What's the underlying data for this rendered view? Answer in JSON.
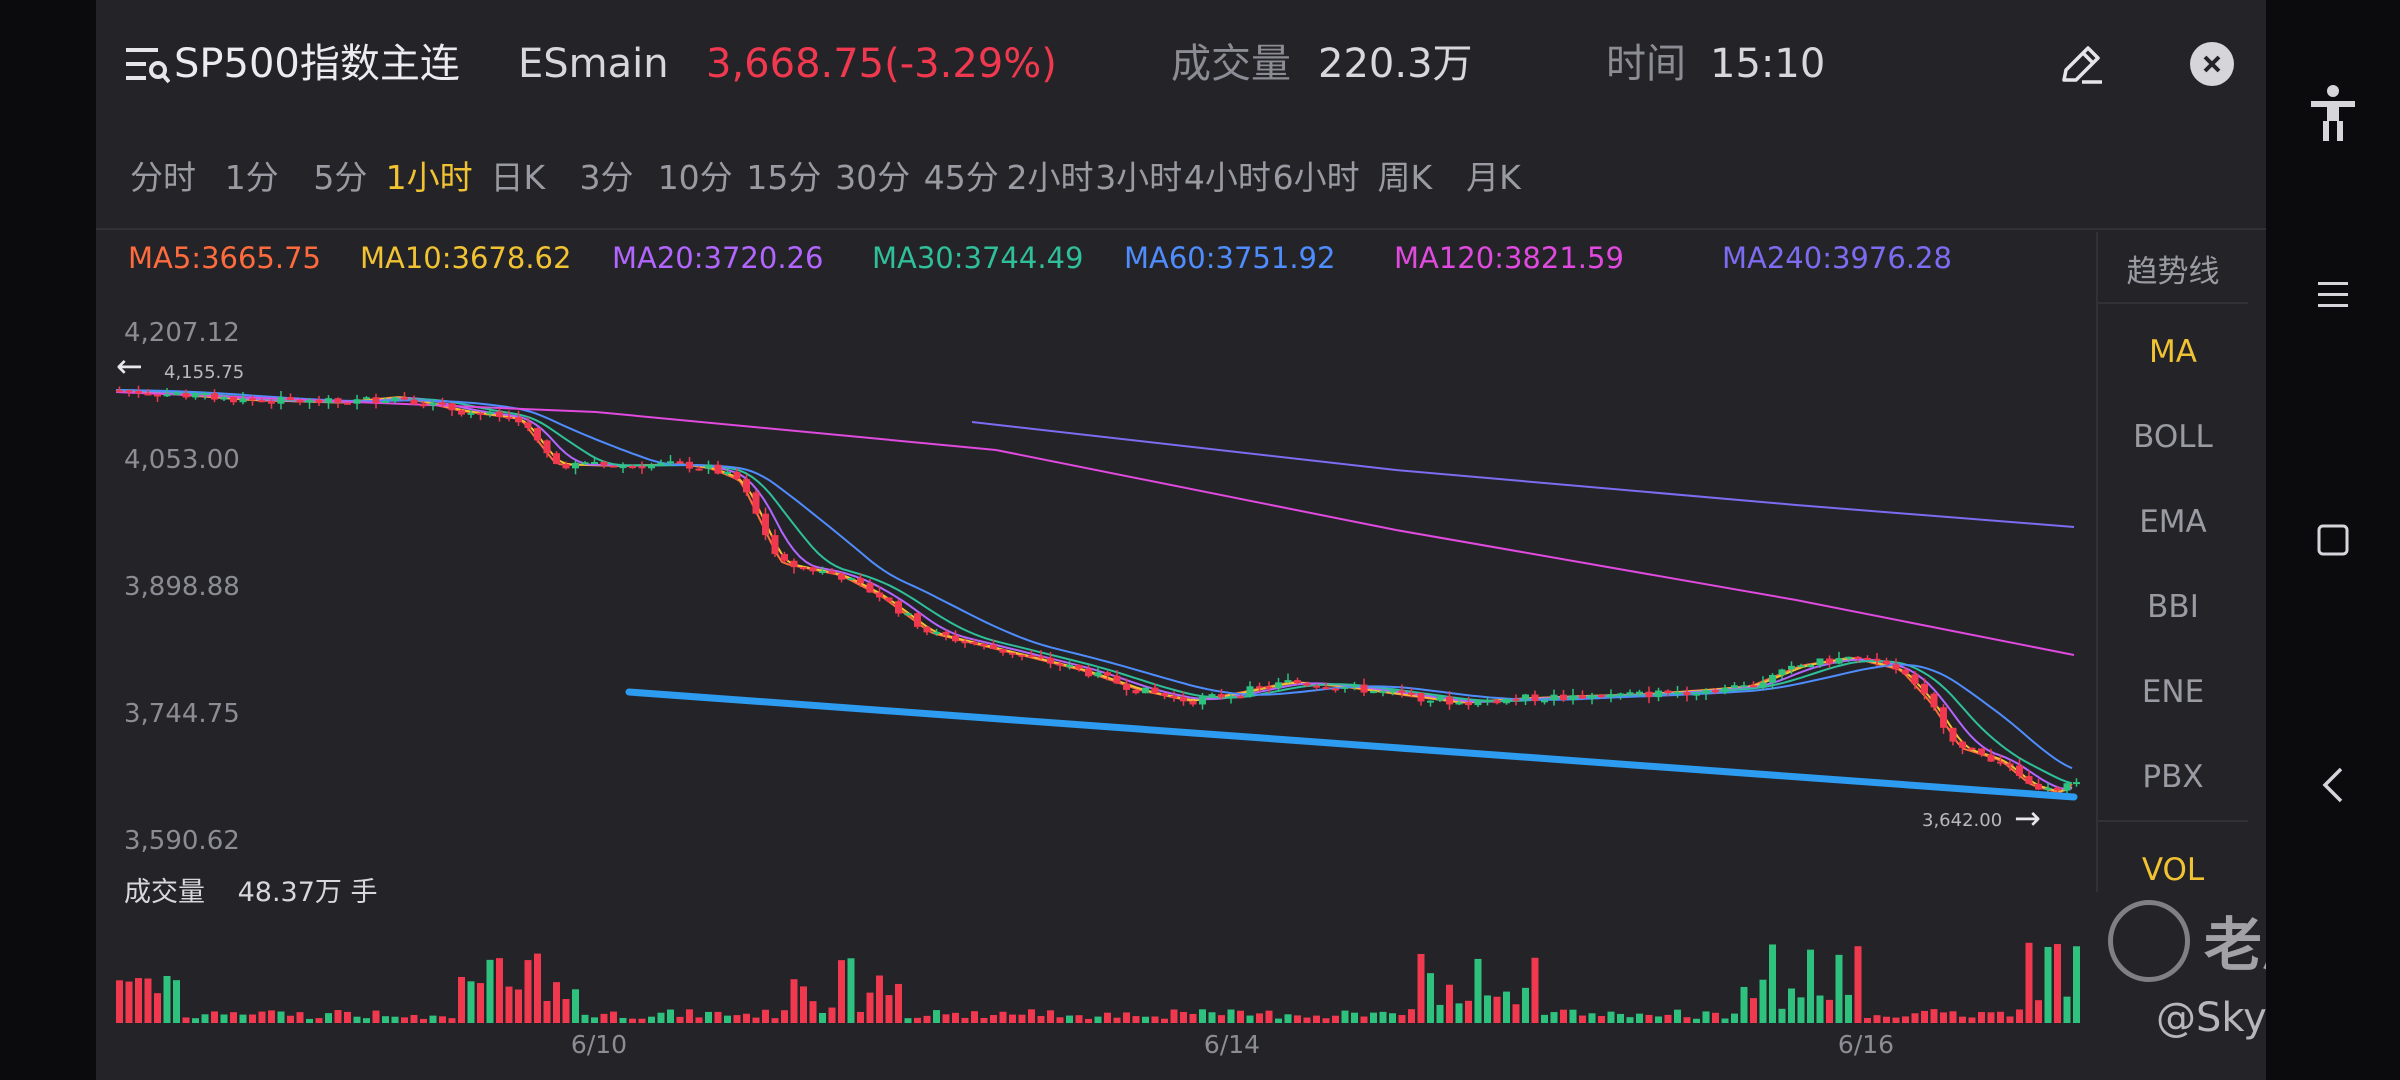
{
  "header": {
    "symbol_name": "SP500指数主连",
    "symbol_code": "ESmain",
    "price_change": "3,668.75(-3.29%)",
    "volume_label": "成交量",
    "volume_value": "220.3万",
    "time_label": "时间",
    "time_value": "15:10"
  },
  "tabs": [
    "分时",
    "1分",
    "5分",
    "1小时",
    "日K",
    "3分",
    "10分",
    "15分",
    "30分",
    "45分",
    "2小时",
    "3小时",
    "4小时",
    "6小时",
    "周K",
    "月K"
  ],
  "active_tab": "1小时",
  "ma_legend": [
    {
      "label": "MA5:3665.75",
      "color": "#ff6b3d"
    },
    {
      "label": "MA10:3678.62",
      "color": "#f1c232"
    },
    {
      "label": "MA20:3720.26",
      "color": "#b266ff"
    },
    {
      "label": "MA30:3744.49",
      "color": "#2fbf9a"
    },
    {
      "label": "MA60:3751.92",
      "color": "#4f8dff"
    },
    {
      "label": "MA120:3821.59",
      "color": "#e04adf"
    },
    {
      "label": "MA240:3976.28",
      "color": "#7b6cf2"
    }
  ],
  "indicators": {
    "trend_line": "趋势线",
    "items": [
      "MA",
      "BOLL",
      "EMA",
      "BBI",
      "ENE",
      "PBX"
    ],
    "active": "MA",
    "vol": "VOL"
  },
  "y_axis_labels": [
    "4,207.12",
    "4,053.00",
    "3,898.88",
    "3,744.75",
    "3,590.62"
  ],
  "price_high_marker": "4,155.75",
  "price_low_marker": "3,642.00",
  "volume_panel": {
    "label": "成交量",
    "value": "48.37万 手"
  },
  "x_axis_dates": [
    "6/10",
    "6/14",
    "6/16"
  ],
  "watermark": {
    "brand": "老虎社区",
    "user": "@Skysjjs"
  },
  "colors": {
    "up": "#2ec27e",
    "down": "#f0384f",
    "trendline": "#2d9bf0",
    "accent": "#f1c232"
  },
  "chart_data": {
    "type": "candlestick",
    "interval": "1小时",
    "y_range": [
      3590.62,
      4207.12
    ],
    "x_dates": [
      "6/10",
      "6/14",
      "6/16"
    ],
    "last_price": 3668.75,
    "high": 4155.75,
    "low": 3642.0,
    "ma": {
      "MA5": 3665.75,
      "MA10": 3678.62,
      "MA20": 3720.26,
      "MA30": 3744.49,
      "MA60": 3751.92,
      "MA120": 3821.59,
      "MA240": 3976.28
    },
    "volume_last": "48.37万 手"
  }
}
